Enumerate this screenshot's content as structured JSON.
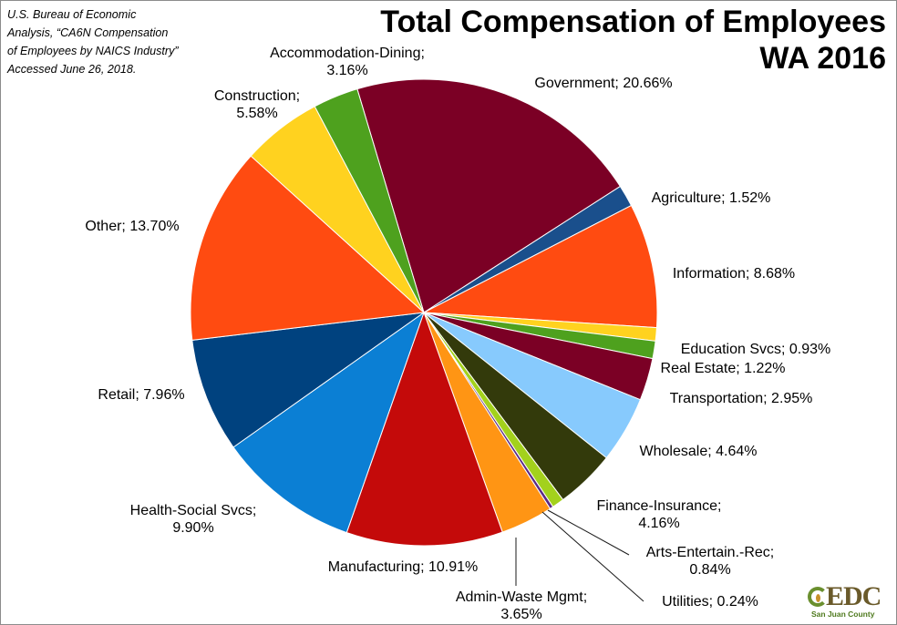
{
  "source": {
    "lines": [
      "U.S. Bureau of Economic",
      "Analysis, “CA6N Compensation",
      "of Employees by NAICS Industry”",
      "Accessed June 26, 2018."
    ]
  },
  "title": {
    "line1": "Total Compensation of Employees",
    "line2": "WA 2016"
  },
  "logo": {
    "word": "EDC",
    "sub": "San Juan County"
  },
  "chart_data": {
    "type": "pie",
    "title": "Total Compensation of Employees WA 2016",
    "start_angle_deg": -16.6,
    "direction": "clockwise",
    "legend": "none (data labels outside slices)",
    "slices": [
      {
        "label": "Government",
        "value": 20.66,
        "display": "Government; 20.66%",
        "color": "#7b0025"
      },
      {
        "label": "Agriculture",
        "value": 1.52,
        "display": "Agriculture; 1.52%",
        "color": "#1a4f8c"
      },
      {
        "label": "Information",
        "value": 8.68,
        "display": "Information; 8.68%",
        "color": "#ff4b11"
      },
      {
        "label": "Education Svcs",
        "value": 0.93,
        "display": "Education Svcs; 0.93%",
        "color": "#ffd21f"
      },
      {
        "label": "Real Estate",
        "value": 1.22,
        "display": "Real Estate; 1.22%",
        "color": "#4ea11e"
      },
      {
        "label": "Transportation",
        "value": 2.95,
        "display": "Transportation; 2.95%",
        "color": "#7b0025"
      },
      {
        "label": "Wholesale",
        "value": 4.64,
        "display": "Wholesale; 4.64%",
        "color": "#87cafd"
      },
      {
        "label": "Finance-Insurance",
        "value": 4.16,
        "display": [
          "Finance-Insurance;",
          "4.16%"
        ],
        "color": "#333a0b"
      },
      {
        "label": "Arts-Entertain.-Rec",
        "value": 0.84,
        "display": [
          "Arts-Entertain.-Rec;",
          "0.84%"
        ],
        "color": "#a3d11c"
      },
      {
        "label": "Utilities",
        "value": 0.24,
        "display": "Utilities; 0.24%",
        "color": "#5b2a86"
      },
      {
        "label": "Admin-Waste Mgmt",
        "value": 3.65,
        "display": [
          "Admin-Waste Mgmt;",
          "3.65%"
        ],
        "color": "#ff9514"
      },
      {
        "label": "Manufacturing",
        "value": 10.91,
        "display": "Manufacturing; 10.91%",
        "color": "#c40a0a"
      },
      {
        "label": "Health-Social Svcs",
        "value": 9.9,
        "display": [
          "Health-Social Svcs;",
          "9.90%"
        ],
        "color": "#0b7fd4"
      },
      {
        "label": "Retail",
        "value": 7.96,
        "display": "Retail; 7.96%",
        "color": "#00427f"
      },
      {
        "label": "Other",
        "value": 13.7,
        "display": "Other; 13.70%",
        "color": "#ff4b11"
      },
      {
        "label": "Construction",
        "value": 5.58,
        "display": [
          "Construction;",
          "5.58%"
        ],
        "color": "#ffd21f"
      },
      {
        "label": "Accommodation-Dining",
        "value": 3.16,
        "display": [
          "Accommodation-Dining;",
          "3.16%"
        ],
        "color": "#4ea11e"
      }
    ]
  }
}
